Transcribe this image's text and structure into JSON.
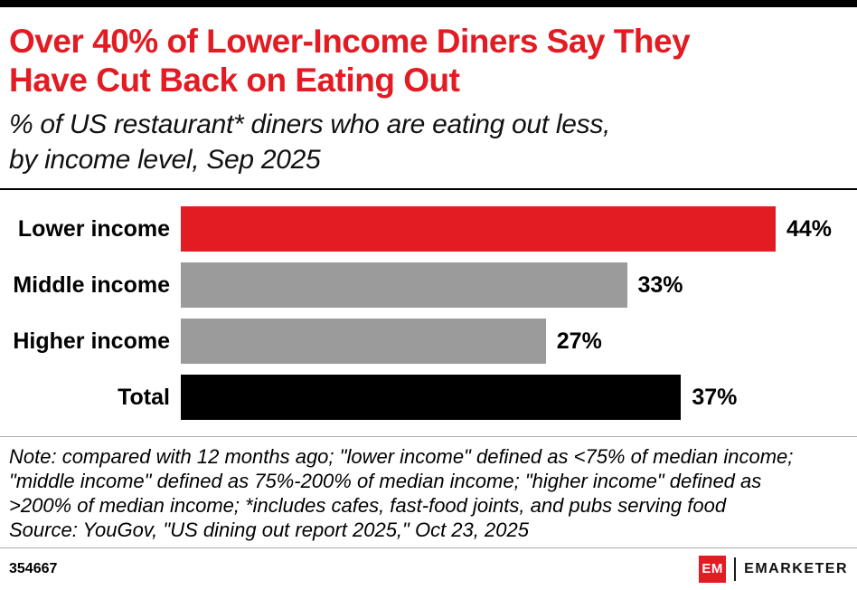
{
  "header": {
    "title_lines": [
      "Over 40% of Lower-Income Diners Say They",
      "Have Cut Back on Eating Out"
    ],
    "subtitle_lines": [
      "% of US restaurant* diners who are eating out less,",
      "by income level, Sep 2025"
    ]
  },
  "chart_data": {
    "type": "bar",
    "orientation": "horizontal",
    "title": "Over 40% of Lower-Income Diners Say They Have Cut Back on Eating Out",
    "subtitle": "% of US restaurant* diners who are eating out less, by income level, Sep 2025",
    "categories": [
      "Lower income",
      "Middle income",
      "Higher income",
      "Total"
    ],
    "values": [
      44,
      33,
      27,
      37
    ],
    "value_labels": [
      "44%",
      "33%",
      "27%",
      "37%"
    ],
    "bar_colors": [
      "#e31b23",
      "#9b9b9b",
      "#9b9b9b",
      "#000000"
    ],
    "xlim": [
      0,
      44
    ],
    "unit": "%",
    "grid": false,
    "legend": "none"
  },
  "footnote": {
    "note_lines": [
      "Note: compared with 12 months ago; \"lower income\" defined as <75% of median income;",
      "\"middle income\" defined as 75%-200% of median income; \"higher income\" defined as",
      ">200% of median income; *includes cafes, fast-food joints, and pubs serving food"
    ],
    "source": "Source: YouGov, \"US dining out report 2025,\" Oct 23, 2025"
  },
  "footer": {
    "chart_number": "354667",
    "logo_mark": "EM",
    "logo_wordmark": "EMARKETER"
  },
  "colors": {
    "accent_red": "#e31b23",
    "bar_gray": "#9b9b9b",
    "bar_black": "#000000"
  }
}
